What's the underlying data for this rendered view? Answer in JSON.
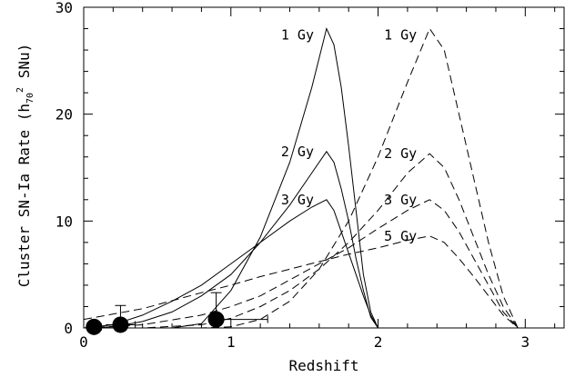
{
  "chart_data": {
    "type": "line",
    "xlabel": "Redshift",
    "ylabel": {
      "prefix": "Cluster SN-Ia Rate (h",
      "sub": "70",
      "sup": "2",
      "suffix": " SNu)"
    },
    "xlim": [
      0,
      3.27
    ],
    "ylim": [
      0,
      30
    ],
    "x_ticks": [
      "0",
      "1",
      "2",
      "3"
    ],
    "y_ticks": [
      "0",
      "10",
      "20",
      "30"
    ],
    "series": [
      {
        "name": "1 Gy",
        "style": "solid",
        "x": [
          0.0,
          0.2,
          0.4,
          0.6,
          0.8,
          1.0,
          1.2,
          1.4,
          1.55,
          1.65,
          1.7,
          1.75,
          1.8,
          1.85,
          1.9,
          1.95,
          2.0
        ],
        "y": [
          0.0,
          0.0,
          0.0,
          0.0,
          0.4,
          3.5,
          8.5,
          15.5,
          22.5,
          28.0,
          26.5,
          22.5,
          17.0,
          11.0,
          5.0,
          1.5,
          0.0
        ]
      },
      {
        "name": "2 Gy",
        "style": "solid",
        "x": [
          0.0,
          0.2,
          0.4,
          0.6,
          0.8,
          1.0,
          1.2,
          1.4,
          1.55,
          1.65,
          1.7,
          1.75,
          1.8,
          1.85,
          1.9,
          1.95,
          2.0
        ],
        "y": [
          0.0,
          0.1,
          0.6,
          1.5,
          3.0,
          5.0,
          8.0,
          11.5,
          14.5,
          16.5,
          15.5,
          13.0,
          10.0,
          6.5,
          3.5,
          1.0,
          0.0
        ]
      },
      {
        "name": "3 Gy",
        "style": "solid",
        "x": [
          0.0,
          0.2,
          0.4,
          0.6,
          0.8,
          1.0,
          1.2,
          1.4,
          1.55,
          1.65,
          1.7,
          1.75,
          1.8,
          1.85,
          1.9,
          1.95,
          2.0
        ],
        "y": [
          0.0,
          0.3,
          1.2,
          2.5,
          4.0,
          6.0,
          8.0,
          10.0,
          11.3,
          12.0,
          11.0,
          9.0,
          7.0,
          5.0,
          3.0,
          1.2,
          0.0
        ]
      },
      {
        "name": "1 Gy",
        "style": "dashed",
        "x": [
          0.0,
          0.4,
          0.8,
          1.0,
          1.2,
          1.4,
          1.6,
          1.8,
          2.0,
          2.2,
          2.35,
          2.45,
          2.55,
          2.65,
          2.75,
          2.85,
          2.95
        ],
        "y": [
          0.0,
          0.0,
          0.0,
          0.1,
          0.8,
          2.5,
          5.5,
          10.0,
          16.0,
          23.0,
          28.0,
          26.0,
          20.0,
          14.0,
          8.0,
          3.0,
          0.0
        ]
      },
      {
        "name": "2 Gy",
        "style": "dashed",
        "x": [
          0.0,
          0.4,
          0.8,
          1.0,
          1.2,
          1.4,
          1.6,
          1.8,
          2.0,
          2.2,
          2.35,
          2.45,
          2.55,
          2.65,
          2.75,
          2.85,
          2.95
        ],
        "y": [
          0.0,
          0.0,
          0.3,
          0.9,
          2.0,
          3.5,
          5.5,
          8.0,
          11.0,
          14.5,
          16.3,
          15.0,
          12.0,
          8.5,
          5.0,
          2.0,
          0.0
        ]
      },
      {
        "name": "3 Gy",
        "style": "dashed",
        "x": [
          0.0,
          0.4,
          0.8,
          1.0,
          1.2,
          1.4,
          1.6,
          1.8,
          2.0,
          2.2,
          2.35,
          2.45,
          2.55,
          2.65,
          2.75,
          2.85,
          2.95
        ],
        "y": [
          0.0,
          0.3,
          1.2,
          2.0,
          3.0,
          4.5,
          6.0,
          7.5,
          9.3,
          11.0,
          12.0,
          11.0,
          9.0,
          6.5,
          4.0,
          1.5,
          0.0
        ]
      },
      {
        "name": "5 Gy",
        "style": "dashed",
        "x": [
          0.0,
          0.4,
          0.8,
          1.0,
          1.2,
          1.4,
          1.6,
          1.8,
          2.0,
          2.2,
          2.35,
          2.45,
          2.55,
          2.65,
          2.75,
          2.85,
          2.95
        ],
        "y": [
          0.8,
          1.8,
          3.3,
          4.0,
          4.8,
          5.5,
          6.2,
          6.9,
          7.5,
          8.2,
          8.6,
          8.0,
          6.5,
          4.8,
          3.0,
          1.2,
          0.0
        ]
      }
    ],
    "observations": [
      {
        "x": 0.07,
        "y": 0.1,
        "xerr": [
          0.05,
          0.05
        ],
        "yerr": [
          0.1,
          0.3
        ]
      },
      {
        "x": 0.25,
        "y": 0.3,
        "xerr": [
          0.1,
          0.1
        ],
        "yerr": [
          0.3,
          1.8
        ]
      },
      {
        "x": 0.9,
        "y": 0.8,
        "xerr": [
          0.0,
          0.35
        ],
        "yerr": [
          0.8,
          2.5
        ]
      }
    ]
  }
}
